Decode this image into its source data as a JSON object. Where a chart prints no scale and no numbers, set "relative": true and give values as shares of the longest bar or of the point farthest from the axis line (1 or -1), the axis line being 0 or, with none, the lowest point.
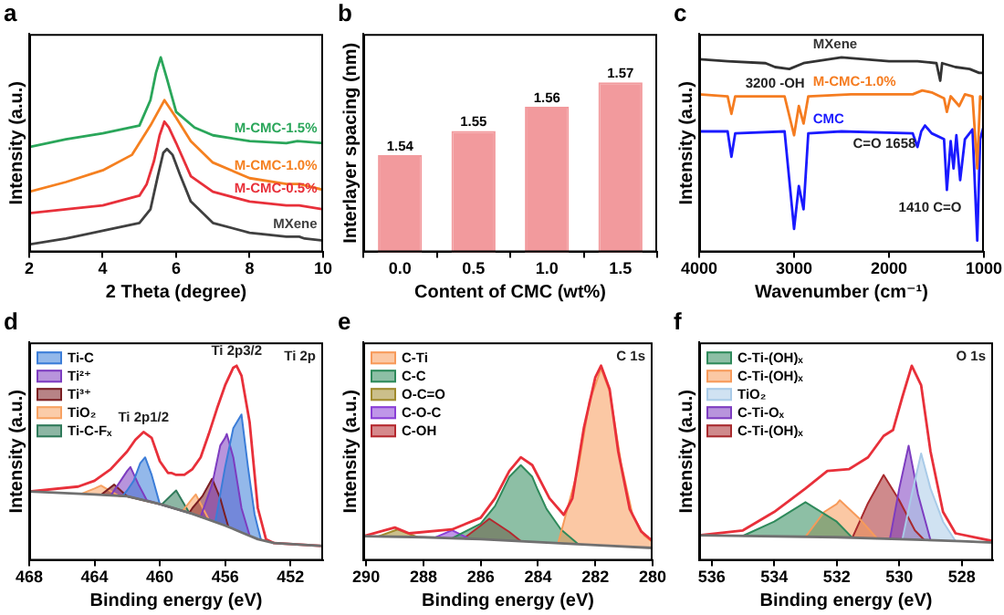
{
  "chart_data": [
    {
      "type": "line",
      "title": "a",
      "xlabel": "2 Theta (degree)",
      "ylabel": "Intensity (a.u.)",
      "relative": true,
      "xlim": [
        2,
        10
      ],
      "xticks": [
        2,
        4,
        6,
        8,
        10
      ],
      "tick_labels": "x",
      "legend": false,
      "series": [
        {
          "name": "MXene",
          "color": "#404040",
          "x": [
            2,
            3,
            4,
            4.5,
            5,
            5.3,
            5.5,
            5.65,
            5.75,
            5.9,
            6.1,
            6.4,
            7,
            8,
            9,
            9.35,
            9.5,
            10
          ],
          "values": [
            0.04,
            0.07,
            0.11,
            0.13,
            0.15,
            0.22,
            0.39,
            0.51,
            0.53,
            0.5,
            0.4,
            0.26,
            0.15,
            0.1,
            0.08,
            0.08,
            0.07,
            0.06
          ]
        },
        {
          "name": "M-CMC-0.5%",
          "color": "#e8303a",
          "x": [
            2,
            3,
            4,
            5,
            5.2,
            5.4,
            5.55,
            5.68,
            5.8,
            6,
            6.4,
            7,
            8,
            9,
            9.35,
            10
          ],
          "values": [
            0.2,
            0.22,
            0.24,
            0.29,
            0.35,
            0.47,
            0.6,
            0.67,
            0.64,
            0.56,
            0.39,
            0.31,
            0.26,
            0.24,
            0.24,
            0.22
          ]
        },
        {
          "name": "M-CMC-1.0%",
          "color": "#f58020",
          "x": [
            2,
            3,
            4,
            4.8,
            5.3,
            5.68,
            6,
            6.4,
            7,
            8,
            9,
            9.35,
            10
          ],
          "values": [
            0.31,
            0.36,
            0.42,
            0.5,
            0.65,
            0.78,
            0.69,
            0.57,
            0.46,
            0.38,
            0.35,
            0.35,
            0.32
          ]
        },
        {
          "name": "M-CMC-1.5%",
          "color": "#2aa65a",
          "x": [
            2,
            3,
            4,
            5,
            5.3,
            5.45,
            5.58,
            5.75,
            6,
            6.5,
            7,
            8,
            9,
            9.3,
            10
          ],
          "values": [
            0.54,
            0.58,
            0.61,
            0.65,
            0.78,
            0.92,
            1,
            0.89,
            0.72,
            0.64,
            0.6,
            0.57,
            0.56,
            0.57,
            0.56
          ]
        }
      ]
    },
    {
      "type": "bar",
      "title": "b",
      "xlabel": "Content of CMC (wt%)",
      "ylabel": "Interlayer spacing (nm)",
      "categories": [
        "0.0",
        "0.5",
        "1.0",
        "1.5"
      ],
      "values": [
        1.54,
        1.55,
        1.56,
        1.57
      ],
      "color": "#f29a9d",
      "ylim": [
        1.5,
        1.59
      ],
      "tick_labels": "x",
      "data_labels": true
    },
    {
      "type": "line",
      "title": "c",
      "xlabel": "Wavenumber (cm⁻¹)",
      "ylabel": "Intensity (a.u.)",
      "relative": true,
      "xlim": [
        4000,
        1000
      ],
      "xticks": [
        4000,
        3000,
        2000,
        1000
      ],
      "tick_labels": "x",
      "legend": false,
      "annotations": [
        {
          "text": "3200 -OH",
          "x": 3200,
          "y": 0.95
        },
        {
          "text": "C=O 1658",
          "x": 1660,
          "y": 0.62
        },
        {
          "text": "1410 C=O",
          "x": 1390,
          "y": 0.32
        }
      ],
      "series": [
        {
          "name": "MXene",
          "color": "#333333",
          "x": [
            4000,
            3700,
            3300,
            3200,
            3050,
            2900,
            2500,
            2000,
            1700,
            1500,
            1460,
            1440,
            1300,
            1150,
            1050,
            1000
          ],
          "values": [
            0.99,
            0.98,
            0.97,
            0.95,
            0.94,
            0.97,
            1,
            0.98,
            0.98,
            0.97,
            0.88,
            0.97,
            0.95,
            0.94,
            0.92,
            0.92
          ]
        },
        {
          "name": "M-CMC-1.0%",
          "color": "#f57c20",
          "x": [
            4000,
            3700,
            3660,
            3620,
            3100,
            3000,
            2950,
            2900,
            2850,
            2400,
            1750,
            1650,
            1550,
            1420,
            1390,
            1350,
            1260,
            1200,
            1120,
            1070,
            1040,
            1000
          ],
          "values": [
            0.81,
            0.8,
            0.71,
            0.8,
            0.8,
            0.6,
            0.75,
            0.66,
            0.8,
            0.81,
            0.81,
            0.83,
            0.82,
            0.79,
            0.72,
            0.8,
            0.75,
            0.81,
            0.8,
            0.43,
            0.8,
            0.78
          ]
        },
        {
          "name": "CMC",
          "color": "#1a1aff",
          "x": [
            4000,
            3700,
            3660,
            3620,
            3100,
            3000,
            2950,
            2900,
            2850,
            2500,
            1750,
            1700,
            1660,
            1620,
            1550,
            1420,
            1390,
            1350,
            1320,
            1290,
            1250,
            1200,
            1120,
            1070,
            1040,
            1000
          ],
          "values": [
            0.62,
            0.62,
            0.49,
            0.61,
            0.62,
            0.12,
            0.34,
            0.22,
            0.61,
            0.62,
            0.61,
            0.54,
            0.62,
            0.65,
            0.61,
            0.58,
            0.32,
            0.57,
            0.43,
            0.6,
            0.37,
            0.58,
            0.63,
            0.06,
            0.58,
            0.65
          ]
        }
      ]
    },
    {
      "type": "area",
      "title": "d",
      "xlabel": "Binding energy (eV)",
      "ylabel": "Intensity (a.u.)",
      "relative": true,
      "xlim": [
        468,
        450
      ],
      "xticks": [
        468,
        464,
        460,
        456,
        452
      ],
      "tick_labels": "x",
      "legend": "top left",
      "annotations": [
        {
          "text": "Ti 2p3/2",
          "x": 455.3,
          "y": 1
        },
        {
          "text": "Ti 2p1/2",
          "x": 461,
          "y": 0.66
        },
        "Ti 2p"
      ],
      "series": [
        {
          "type": "line",
          "color": "#707070",
          "x": [
            468,
            464,
            462,
            460,
            458,
            456,
            455,
            454,
            453,
            450
          ],
          "values": [
            0.355,
            0.34,
            0.33,
            0.29,
            0.24,
            0.18,
            0.145,
            0.11,
            0.09,
            0.075
          ]
        },
        {
          "type": "line",
          "color": "#e8303a",
          "x": [
            468,
            465,
            464,
            463,
            462,
            461.5,
            461,
            460.5,
            460,
            459.5,
            459.3,
            459,
            458.5,
            458,
            457.5,
            457,
            456.5,
            456,
            455.5,
            455.3,
            455,
            454.5,
            454,
            453.5,
            453,
            450
          ],
          "values": [
            0.355,
            0.38,
            0.41,
            0.47,
            0.56,
            0.62,
            0.66,
            0.63,
            0.51,
            0.45,
            0.45,
            0.44,
            0.44,
            0.47,
            0.53,
            0.65,
            0.78,
            0.9,
            0.99,
            1,
            0.95,
            0.71,
            0.27,
            0.11,
            0.09,
            0.075
          ]
        },
        {
          "name": "Ti-C",
          "color": "#3b7dd8",
          "x": [
            462.3,
            462,
            461.6,
            461.2,
            460.9,
            460.5,
            460,
            458,
            456.6,
            456,
            455.5,
            455,
            454.6,
            454.2,
            454,
            453.8
          ],
          "values": [
            0.33,
            0.36,
            0.41,
            0.5,
            0.53,
            0.44,
            0.29,
            0.24,
            0.2,
            0.48,
            0.68,
            0.75,
            0.48,
            0.24,
            0.17,
            0.106
          ]
        },
        {
          "name": "Ti²⁺",
          "color": "#7d3cc0",
          "x": [
            463,
            462.4,
            462,
            461.8,
            461.3,
            460.8,
            460,
            458,
            457.5,
            456.8,
            456.3,
            456,
            455.9,
            455.5,
            455,
            454.5
          ],
          "values": [
            0.335,
            0.41,
            0.46,
            0.48,
            0.39,
            0.31,
            0.29,
            0.24,
            0.225,
            0.39,
            0.59,
            0.63,
            0.65,
            0.53,
            0.27,
            0.128
          ]
        },
        {
          "name": "Ti³⁺",
          "color": "#7b1e22",
          "x": [
            463.6,
            462.8,
            462,
            460,
            458.2,
            458,
            457.4,
            456.8,
            456.3,
            456,
            455.8
          ],
          "values": [
            0.338,
            0.39,
            0.33,
            0.29,
            0.245,
            0.27,
            0.33,
            0.42,
            0.32,
            0.23,
            0.173
          ]
        },
        {
          "name": "TiO₂",
          "color": "#f7a262",
          "x": [
            464.8,
            464,
            463.6,
            462.5,
            462,
            460,
            458.6,
            458,
            457.8,
            457
          ],
          "values": [
            0.343,
            0.37,
            0.385,
            0.331,
            0.33,
            0.29,
            0.255,
            0.32,
            0.34,
            0.21
          ]
        },
        {
          "name": "Ti-C-Fₓ",
          "color": "#2f7a5a",
          "x": [
            459.9,
            459,
            458.2
          ],
          "values": [
            0.287,
            0.36,
            0.245
          ]
        }
      ]
    },
    {
      "type": "area",
      "title": "e",
      "xlabel": "Binding energy (eV)",
      "ylabel": "Intensity (a.u.)",
      "relative": true,
      "xlim": [
        290.1,
        280
      ],
      "xticks": [
        290,
        288,
        286,
        284,
        282,
        280
      ],
      "tick_labels": "x",
      "legend": "top left",
      "annotations": [
        "C 1s"
      ],
      "series": [
        {
          "type": "line",
          "color": "#707070",
          "x": [
            290.1,
            288,
            286,
            284,
            282,
            280
          ],
          "values": [
            0.125,
            0.12,
            0.11,
            0.095,
            0.08,
            0.065
          ]
        },
        {
          "type": "line",
          "color": "#e8303a",
          "x": [
            290.1,
            289,
            288.5,
            287,
            286,
            285.5,
            285,
            284.6,
            284.2,
            283.6,
            283.1,
            282.8,
            282.4,
            282,
            281.8,
            281.5,
            281.2,
            280.8,
            280.4,
            280
          ],
          "values": [
            0.125,
            0.17,
            0.14,
            0.16,
            0.22,
            0.32,
            0.46,
            0.53,
            0.49,
            0.32,
            0.235,
            0.32,
            0.68,
            0.94,
            1,
            0.88,
            0.56,
            0.265,
            0.15,
            0.1
          ]
        },
        {
          "name": "C-Ti",
          "color": "#f79a5a",
          "x": [
            283.3,
            282.6,
            282.2,
            282,
            281.8,
            281.5,
            281.1,
            280.7,
            280.3,
            280
          ],
          "values": [
            0.088,
            0.47,
            0.82,
            0.9,
            0.985,
            0.87,
            0.5,
            0.235,
            0.13,
            0.094
          ]
        },
        {
          "name": "C-C",
          "color": "#2f8a5b",
          "x": [
            287,
            286,
            285.5,
            285,
            284.6,
            284.2,
            284,
            283.7,
            283.2,
            282.6
          ],
          "values": [
            0.115,
            0.19,
            0.28,
            0.43,
            0.49,
            0.43,
            0.36,
            0.265,
            0.16,
            0.085
          ]
        },
        {
          "name": "O-C=O",
          "color": "#a08a2c",
          "x": [
            289.6,
            288.9,
            288.2
          ],
          "values": [
            0.123,
            0.16,
            0.12
          ]
        },
        {
          "name": "C-O-C",
          "color": "#8a3fd6",
          "x": [
            287.6,
            287,
            286.4
          ],
          "values": [
            0.118,
            0.156,
            0.112
          ]
        },
        {
          "name": "C-OH",
          "color": "#b5282e",
          "x": [
            286.6,
            286,
            285.7,
            285,
            284.6
          ],
          "values": [
            0.113,
            0.18,
            0.215,
            0.147,
            0.1
          ]
        }
      ]
    },
    {
      "type": "area",
      "title": "f",
      "xlabel": "Binding energy (eV)",
      "ylabel": "Intensity (a.u.)",
      "relative": true,
      "xlim": [
        536.4,
        527
      ],
      "xticks": [
        536,
        534,
        532,
        530,
        528
      ],
      "tick_labels": "x",
      "legend": "top left",
      "annotations": [
        "O 1s"
      ],
      "series": [
        {
          "type": "line",
          "color": "#707070",
          "x": [
            536.4,
            532,
            530,
            528,
            527
          ],
          "values": [
            0.13,
            0.12,
            0.11,
            0.1,
            0.093
          ]
        },
        {
          "type": "line",
          "color": "#e8303a",
          "x": [
            536.4,
            535,
            534,
            533,
            532.3,
            531.6,
            531,
            530.5,
            530.2,
            529.9,
            529.6,
            529.3,
            529,
            528.6,
            528.2,
            527
          ],
          "values": [
            0.13,
            0.155,
            0.25,
            0.37,
            0.46,
            0.47,
            0.53,
            0.64,
            0.67,
            0.84,
            1,
            0.9,
            0.56,
            0.25,
            0.14,
            0.1
          ]
        },
        {
          "name": "C-Ti-(OH)ₓ",
          "color": "#2f8a5b",
          "x": [
            535,
            534,
            533,
            532.2,
            532,
            531.5
          ],
          "values": [
            0.127,
            0.2,
            0.3,
            0.22,
            0.2,
            0.117
          ]
        },
        {
          "name": "C-Ti-(OH)ₓ",
          "color": "#f79a5a",
          "x": [
            533,
            532.4,
            532,
            531.9,
            531.3,
            530.7
          ],
          "values": [
            0.122,
            0.25,
            0.29,
            0.31,
            0.22,
            0.112
          ]
        },
        {
          "name": "TiO₂",
          "color": "#a9cbe8",
          "x": [
            529.9,
            529.6,
            529.3,
            529,
            528.6,
            528.2
          ],
          "values": [
            0.109,
            0.34,
            0.55,
            0.37,
            0.2,
            0.1
          ]
        },
        {
          "name": "C-Ti-Oₓ",
          "color": "#7d3cc0",
          "x": [
            530.3,
            530,
            529.7,
            529.4,
            529
          ],
          "values": [
            0.11,
            0.37,
            0.59,
            0.34,
            0.105
          ]
        },
        {
          "name": "C-Ti-(OH)ₓ",
          "color": "#a82a2e",
          "x": [
            531.5,
            531,
            530.5,
            530,
            529.5,
            529.2
          ],
          "values": [
            0.117,
            0.295,
            0.44,
            0.31,
            0.155,
            0.106
          ]
        }
      ]
    }
  ]
}
